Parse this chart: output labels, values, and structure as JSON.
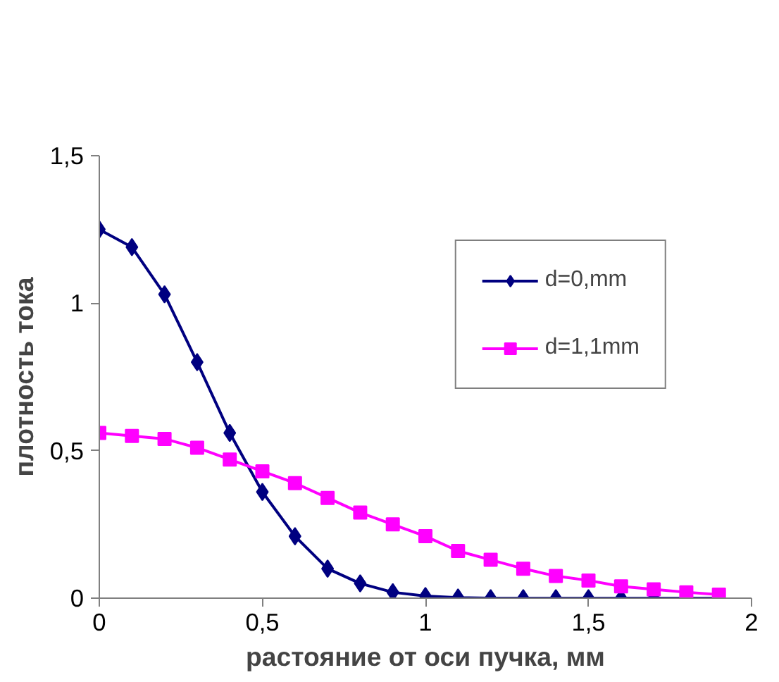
{
  "chart_data": {
    "type": "line",
    "xlabel": "растояние от оси пучка, мм",
    "ylabel": "плотность тока",
    "x": [
      0,
      0.1,
      0.2,
      0.3,
      0.4,
      0.5,
      0.6,
      0.7,
      0.8,
      0.9,
      1.0,
      1.1,
      1.2,
      1.3,
      1.4,
      1.5,
      1.6,
      1.7,
      1.8,
      1.9
    ],
    "series": [
      {
        "name": "d=0,mm",
        "color": "#000080",
        "marker": "diamond",
        "values": [
          1.25,
          1.19,
          1.03,
          0.8,
          0.56,
          0.36,
          0.21,
          0.1,
          0.05,
          0.02,
          0.007,
          0.002,
          0,
          0,
          0,
          0,
          0,
          0,
          0,
          0
        ]
      },
      {
        "name": "d=1,1mm",
        "color": "#ff00ff",
        "marker": "square",
        "values": [
          0.56,
          0.55,
          0.54,
          0.51,
          0.47,
          0.43,
          0.39,
          0.34,
          0.29,
          0.25,
          0.21,
          0.16,
          0.13,
          0.1,
          0.075,
          0.06,
          0.04,
          0.03,
          0.02,
          0.012
        ]
      }
    ],
    "xlim": [
      0,
      2
    ],
    "ylim": [
      0,
      1.5
    ],
    "xticks": [
      0,
      {
        "value": 0.5,
        "label": "0,5"
      },
      1,
      {
        "value": 1.5,
        "label": "1,5"
      },
      2
    ],
    "yticks": [
      0,
      {
        "value": 0.5,
        "label": "0,5"
      },
      1,
      {
        "value": 1.5,
        "label": "1,5"
      }
    ],
    "grid": false,
    "legend": "top right",
    "line_style": "solid"
  }
}
